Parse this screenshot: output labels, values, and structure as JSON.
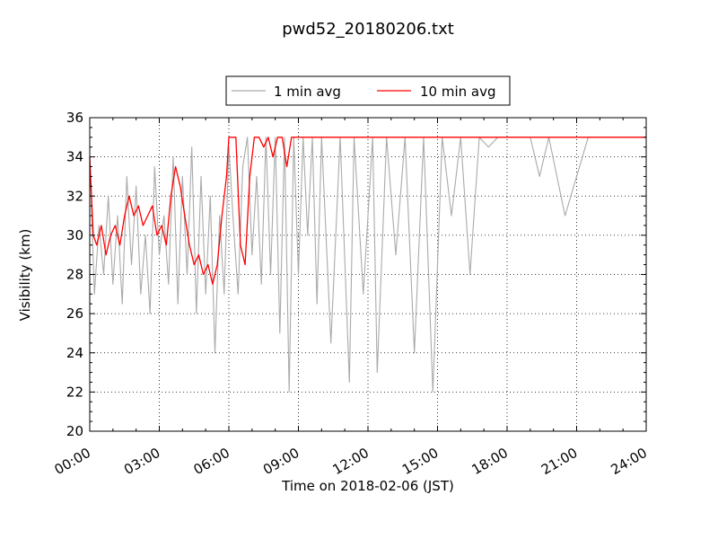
{
  "chart_data": {
    "type": "line",
    "title": "pwd52_20180206.txt",
    "xlabel": "Time on 2018-02-06 (JST)",
    "ylabel": "Visibility (km)",
    "xlim_hours": [
      0,
      24
    ],
    "ylim": [
      20,
      36
    ],
    "x_ticks": [
      "00:00",
      "03:00",
      "06:00",
      "09:00",
      "12:00",
      "15:00",
      "18:00",
      "21:00",
      "24:00"
    ],
    "y_ticks": [
      "20",
      "22",
      "24",
      "26",
      "28",
      "30",
      "32",
      "34",
      "36"
    ],
    "grid": true,
    "legend_position": "top-center",
    "series": [
      {
        "name": "1 min avg",
        "color": "#aaaaaa",
        "x_hours": [
          0.0,
          0.2,
          0.4,
          0.6,
          0.8,
          1.0,
          1.2,
          1.4,
          1.6,
          1.8,
          2.0,
          2.2,
          2.4,
          2.6,
          2.8,
          3.0,
          3.2,
          3.4,
          3.6,
          3.8,
          4.0,
          4.2,
          4.4,
          4.6,
          4.8,
          5.0,
          5.2,
          5.4,
          5.6,
          5.8,
          6.0,
          6.2,
          6.4,
          6.6,
          6.8,
          7.0,
          7.2,
          7.4,
          7.6,
          7.8,
          8.0,
          8.2,
          8.4,
          8.6,
          8.8,
          9.0,
          9.2,
          9.4,
          9.6,
          9.8,
          10.0,
          10.4,
          10.8,
          11.2,
          11.4,
          11.8,
          12.2,
          12.4,
          12.8,
          13.2,
          13.6,
          14.0,
          14.4,
          14.8,
          15.2,
          15.6,
          16.0,
          16.4,
          16.8,
          17.2,
          17.6,
          18.0,
          19.0,
          19.4,
          19.8,
          20.5,
          21.5,
          22.5,
          24.0
        ],
        "values": [
          34.0,
          27.0,
          30.5,
          28.0,
          32.0,
          27.5,
          31.0,
          26.5,
          33.0,
          28.5,
          32.5,
          27.0,
          30.0,
          26.0,
          33.5,
          29.0,
          31.0,
          27.5,
          34.0,
          26.5,
          33.0,
          28.0,
          34.5,
          26.0,
          33.0,
          27.0,
          32.0,
          24.0,
          31.0,
          27.0,
          34.5,
          30.5,
          27.0,
          33.5,
          35.0,
          29.0,
          33.0,
          27.5,
          35.0,
          28.0,
          35.0,
          25.0,
          35.0,
          22.0,
          35.0,
          28.0,
          35.0,
          30.0,
          35.0,
          26.5,
          35.0,
          24.5,
          35.0,
          22.5,
          35.0,
          27.0,
          35.0,
          23.0,
          35.0,
          29.0,
          35.0,
          24.0,
          35.0,
          22.0,
          35.0,
          31.0,
          35.0,
          28.0,
          35.0,
          34.5,
          35.0,
          35.0,
          35.0,
          33.0,
          35.0,
          31.0,
          35.0,
          35.0,
          35.0
        ]
      },
      {
        "name": "10 min avg",
        "color": "#ff0000",
        "x_hours": [
          0.0,
          0.15,
          0.3,
          0.5,
          0.7,
          0.9,
          1.1,
          1.3,
          1.5,
          1.7,
          1.9,
          2.1,
          2.3,
          2.5,
          2.7,
          2.9,
          3.1,
          3.3,
          3.5,
          3.7,
          3.9,
          4.1,
          4.3,
          4.5,
          4.7,
          4.9,
          5.1,
          5.3,
          5.5,
          5.7,
          5.9,
          6.0,
          6.1,
          6.3,
          6.5,
          6.7,
          6.9,
          7.1,
          7.3,
          7.5,
          7.7,
          7.9,
          8.1,
          8.3,
          8.5,
          8.7,
          9.0,
          10.0,
          12.0,
          15.0,
          18.0,
          21.0,
          24.0
        ],
        "values": [
          34.0,
          30.0,
          29.5,
          30.5,
          29.0,
          30.0,
          30.5,
          29.5,
          31.0,
          32.0,
          31.0,
          31.5,
          30.5,
          31.0,
          31.5,
          30.0,
          30.5,
          29.5,
          32.0,
          33.5,
          32.5,
          31.0,
          29.5,
          28.5,
          29.0,
          28.0,
          28.5,
          27.5,
          28.5,
          31.0,
          33.0,
          35.0,
          35.0,
          35.0,
          29.5,
          28.5,
          33.0,
          35.0,
          35.0,
          34.5,
          35.0,
          34.0,
          35.0,
          35.0,
          33.5,
          35.0,
          35.0,
          35.0,
          35.0,
          35.0,
          35.0,
          35.0,
          35.0
        ]
      }
    ]
  }
}
